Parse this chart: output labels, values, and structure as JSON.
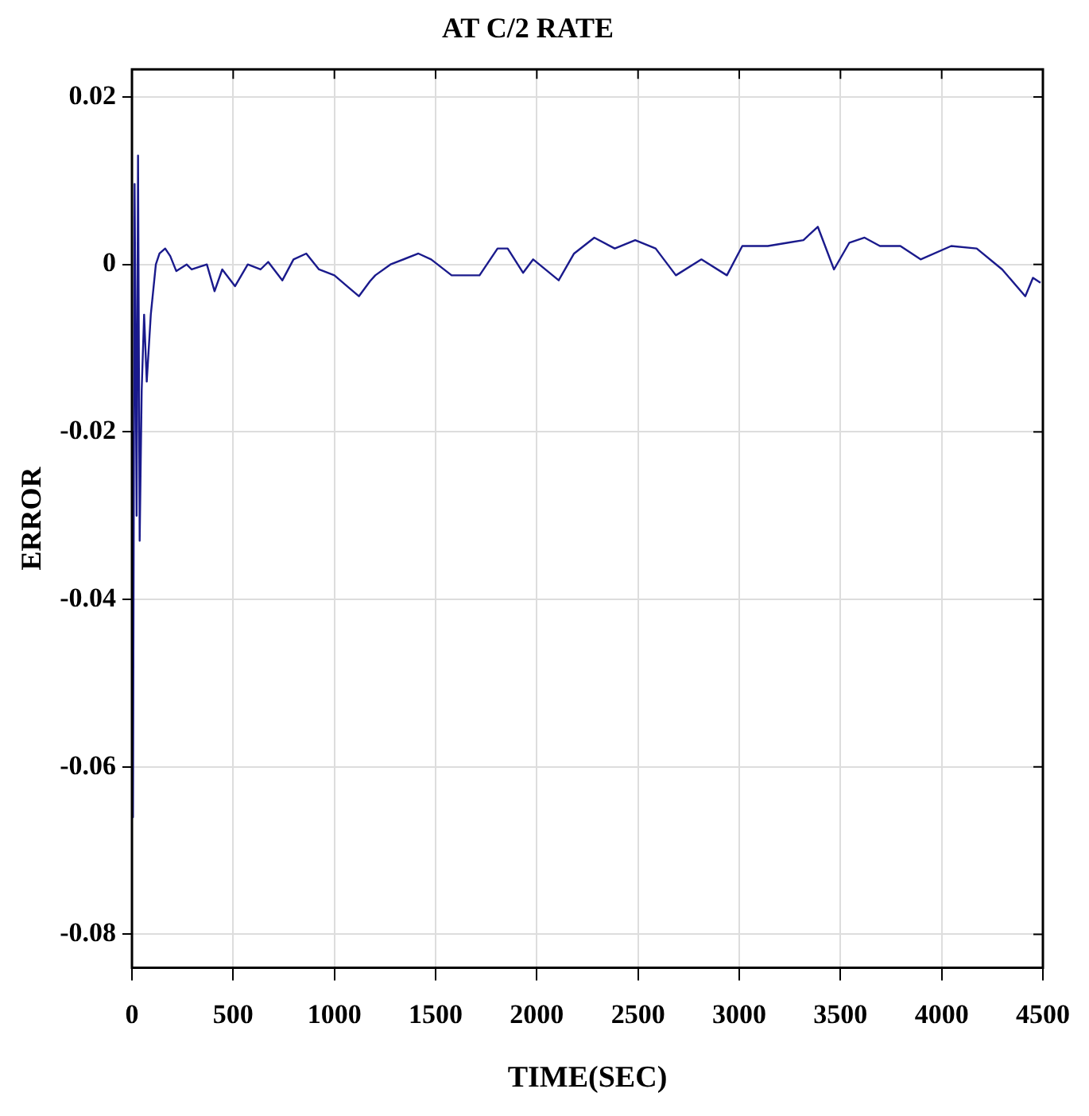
{
  "chart_data": {
    "type": "line",
    "title": "AT C/2 RATE",
    "xlabel": "TIME(SEC)",
    "ylabel": "ERROR",
    "xlim": [
      0,
      4500
    ],
    "ylim": [
      -0.084,
      0.0233
    ],
    "xticks": [
      0,
      500,
      1000,
      1500,
      2000,
      2500,
      3000,
      3500,
      4000,
      4500
    ],
    "yticks": [
      -0.08,
      -0.06,
      -0.04,
      -0.02,
      0,
      0.02
    ],
    "grid": true,
    "marker": "none",
    "line_style": "solid",
    "series": [
      {
        "color": "#1a1a8c",
        "x": [
          0,
          5,
          13,
          23,
          30,
          38,
          48,
          60,
          73,
          93,
          118,
          136,
          164,
          189,
          219,
          270,
          295,
          370,
          408,
          446,
          509,
          572,
          635,
          673,
          743,
          798,
          861,
          924,
          1000,
          1063,
          1121,
          1176,
          1202,
          1277,
          1415,
          1478,
          1579,
          1717,
          1806,
          1856,
          1932,
          1982,
          2108,
          2184,
          2284,
          2385,
          2486,
          2587,
          2687,
          2813,
          2939,
          3015,
          3141,
          3242,
          3317,
          3388,
          3468,
          3544,
          3619,
          3695,
          3796,
          3896,
          4047,
          4173,
          4299,
          4413,
          4451,
          4488
        ],
        "values": [
          -0.02,
          -0.066,
          0.0096,
          -0.03,
          0.013,
          -0.033,
          -0.015,
          -0.006,
          -0.014,
          -0.006,
          0,
          0.0013,
          0.0019,
          0.001,
          -0.0008,
          0,
          -0.0006,
          0,
          -0.0032,
          -0.0006,
          -0.0026,
          0,
          -0.0006,
          0.0003,
          -0.0019,
          0.0006,
          0.0013,
          -0.0006,
          -0.0013,
          -0.0026,
          -0.0038,
          -0.002,
          -0.0013,
          0,
          0.0013,
          0.0006,
          -0.0013,
          -0.0013,
          0.0019,
          0.0019,
          -0.001,
          0.0006,
          -0.0019,
          0.0013,
          0.0032,
          0.0019,
          0.0029,
          0.0019,
          -0.0013,
          0.0006,
          -0.0013,
          0.0022,
          0.0022,
          0.0026,
          0.0029,
          0.0045,
          -0.0006,
          0.0026,
          0.0032,
          0.0022,
          0.0022,
          0.0006,
          0.0022,
          0.0019,
          -0.0006,
          -0.0038,
          -0.0016,
          -0.0022
        ]
      }
    ]
  }
}
